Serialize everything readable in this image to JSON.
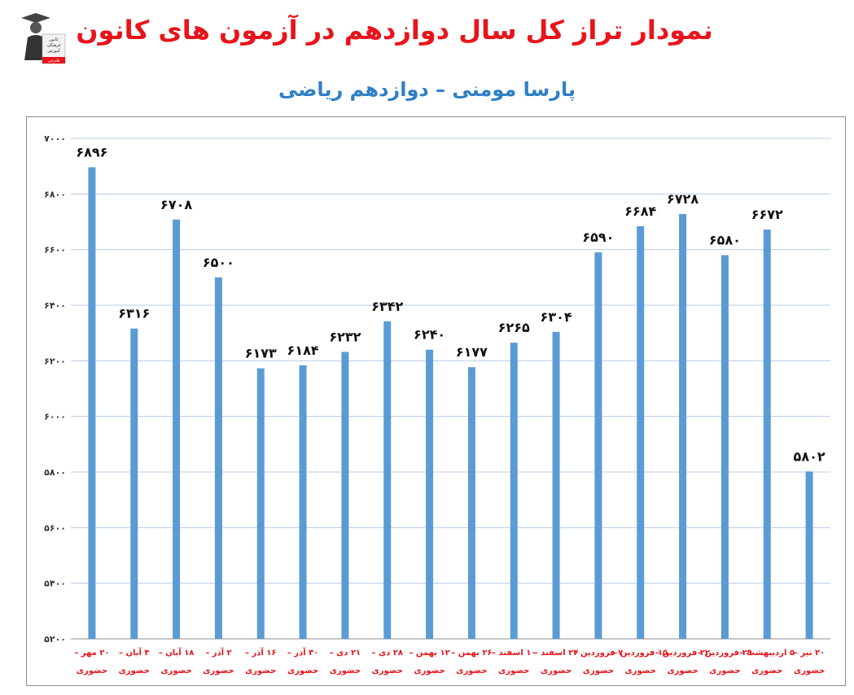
{
  "header": {
    "title": "نمودار تراز کل سال دوازدهم در آزمون های کانون",
    "subtitle": "پارسا مومنی – دوازدهم ریاضی"
  },
  "logo": {
    "icon": "graduate-logo-icon",
    "text_lines": [
      "کانون",
      "فرهنگی",
      "آموزش",
      "قلم‌چی"
    ]
  },
  "colors": {
    "bar": "#5b9bd5",
    "title": "#e8141b",
    "subtitle": "#2f7fc6",
    "category": "#e8141b",
    "grid": "#b8cce4"
  },
  "chart_data": {
    "type": "bar",
    "title": "نمودار تراز کل سال دوازدهم در آزمون های کانون",
    "subtitle": "پارسا مومنی – دوازدهم ریاضی",
    "ylim": [
      5200,
      7000
    ],
    "yticks": [
      5200,
      5400,
      5600,
      5800,
      6000,
      6200,
      6400,
      6600,
      6800,
      7000
    ],
    "grid": true,
    "legend": "none",
    "categories": [
      "۲۰ مهر – حضوری",
      "۴ آبان – حضوری",
      "۱۸ آبان – حضوری",
      "۲ آذر – حضوری",
      "۱۶ آذر – حضوری",
      "۳۰ آذر – حضوری",
      "۲۱ دی – حضوری",
      "۲۸ دی – حضوری",
      "۱۲ بهمن – حضوری",
      "۲۶ بهمن – حضوری",
      "۱۰ اسفند – حضوری",
      "۲۴ اسفند – حضوری",
      "۷ فروردین – حضوری",
      "۱۵ فروردین – حضوری",
      "۲۲ فروردین – حضوری",
      "۲۹ فروردین – حضوری",
      "۵ اردیبهشت – حضوری",
      "۲۰ تیر – حضوری"
    ],
    "values": [
      6896,
      6316,
      6708,
      6500,
      6173,
      6184,
      6232,
      6342,
      6240,
      6177,
      6265,
      6304,
      6590,
      6684,
      6728,
      6580,
      6672,
      5802
    ]
  }
}
